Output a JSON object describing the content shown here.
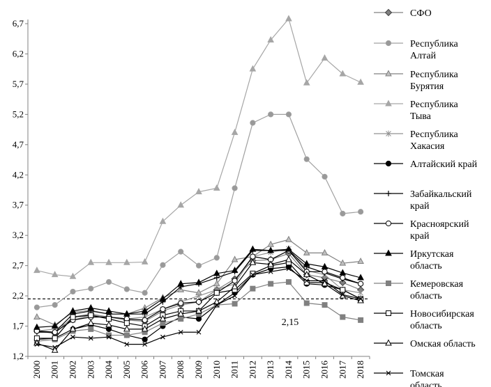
{
  "chart_data": {
    "type": "line",
    "x": [
      "2000",
      "2001",
      "2002",
      "2003",
      "2004",
      "2005",
      "2006",
      "2007",
      "2008",
      "2009",
      "2010",
      "2011",
      "2012",
      "2013",
      "2014",
      "2015",
      "2016",
      "2017",
      "2018"
    ],
    "ylim": [
      1.2,
      6.7
    ],
    "yticks": [
      "1,2",
      "1,7",
      "2,2",
      "2,7",
      "3,2",
      "3,7",
      "4,2",
      "4,7",
      "5,2",
      "5,7",
      "6,2",
      "6,7"
    ],
    "grid": false,
    "legend_position": "right",
    "reference_line": {
      "value": 2.15,
      "label": "2,15",
      "style": "dashed"
    },
    "series": [
      {
        "name": "СФО",
        "marker": "diamond",
        "color": "#808080",
        "markerFill": "#808080",
        "values": [
          1.62,
          1.58,
          1.85,
          1.9,
          1.85,
          1.8,
          1.78,
          1.95,
          2.05,
          2.1,
          2.3,
          2.48,
          2.78,
          2.8,
          2.9,
          2.55,
          2.5,
          2.42,
          2.3
        ]
      },
      {
        "name": "Республика Алтай",
        "marker": "circle",
        "color": "#a0a0a0",
        "markerFill": "#999999",
        "values": [
          2.01,
          2.05,
          2.27,
          2.32,
          2.43,
          2.31,
          2.25,
          2.71,
          2.93,
          2.7,
          2.83,
          3.98,
          5.06,
          5.2,
          5.2,
          4.46,
          4.17,
          3.56,
          3.59
        ]
      },
      {
        "name": "Республика Бурятия",
        "marker": "triangle",
        "color": "#808080",
        "markerFill": "#bfbfbf",
        "values": [
          1.85,
          1.72,
          1.93,
          1.96,
          1.9,
          1.9,
          2.0,
          2.17,
          2.3,
          2.25,
          2.4,
          2.8,
          2.85,
          3.05,
          3.13,
          2.91,
          2.91,
          2.74,
          2.77
        ]
      },
      {
        "name": "Республика Тыва",
        "marker": "triangle",
        "color": "#a6a6a6",
        "markerFill": "#a6a6a6",
        "values": [
          2.62,
          2.55,
          2.52,
          2.75,
          2.75,
          2.75,
          2.76,
          3.43,
          3.7,
          3.92,
          3.98,
          4.9,
          5.95,
          6.43,
          6.78,
          5.72,
          6.13,
          5.87,
          5.73
        ]
      },
      {
        "name": "Республика Хакасия",
        "marker": "star",
        "color": "#909090",
        "markerFill": "#909090",
        "values": [
          1.62,
          1.65,
          1.8,
          1.88,
          1.85,
          1.82,
          1.85,
          1.98,
          2.1,
          2.2,
          2.3,
          2.4,
          2.85,
          2.92,
          2.98,
          2.62,
          2.55,
          2.3,
          2.25
        ]
      },
      {
        "name": "Алтайский край",
        "marker": "circle",
        "color": "#000000",
        "markerFill": "#000000",
        "values": [
          1.48,
          1.5,
          1.65,
          1.72,
          1.65,
          1.55,
          1.48,
          1.7,
          1.85,
          1.82,
          2.05,
          2.25,
          2.55,
          2.65,
          2.68,
          2.4,
          2.38,
          2.3,
          2.15
        ]
      },
      {
        "name": "Забайкальский край",
        "marker": "plus",
        "color": "#000000",
        "markerFill": "#000000",
        "values": [
          1.6,
          1.6,
          1.9,
          1.95,
          1.9,
          1.9,
          1.9,
          2.1,
          2.35,
          2.4,
          2.5,
          2.6,
          2.95,
          2.95,
          2.95,
          2.68,
          2.58,
          2.48,
          2.4
        ]
      },
      {
        "name": "Красноярский край",
        "marker": "circle",
        "color": "#000000",
        "markerFill": "#ffffff",
        "values": [
          1.62,
          1.6,
          1.8,
          1.85,
          1.85,
          1.82,
          1.8,
          1.98,
          2.08,
          2.1,
          2.25,
          2.45,
          2.85,
          2.8,
          2.95,
          2.6,
          2.6,
          2.5,
          2.4
        ]
      },
      {
        "name": "Иркутская область",
        "marker": "triangle",
        "color": "#000000",
        "markerFill": "#000000",
        "values": [
          1.68,
          1.7,
          1.95,
          2.0,
          1.95,
          1.9,
          1.95,
          2.15,
          2.4,
          2.42,
          2.57,
          2.62,
          2.97,
          2.95,
          2.97,
          2.73,
          2.68,
          2.58,
          2.5
        ]
      },
      {
        "name": "Кемеровская область",
        "marker": "square",
        "color": "#808080",
        "markerFill": "#808080",
        "values": [
          1.45,
          1.48,
          1.62,
          1.65,
          1.55,
          1.55,
          1.6,
          1.75,
          1.82,
          1.9,
          2.05,
          2.07,
          2.32,
          2.4,
          2.43,
          2.08,
          2.05,
          1.85,
          1.8
        ]
      },
      {
        "name": "Новосибирская область",
        "marker": "square",
        "color": "#000000",
        "markerFill": "#ffffff",
        "values": [
          1.5,
          1.5,
          1.85,
          1.88,
          1.82,
          1.75,
          1.7,
          1.88,
          1.95,
          1.95,
          2.25,
          2.3,
          2.57,
          2.7,
          2.75,
          2.42,
          2.42,
          2.3,
          2.15
        ]
      },
      {
        "name": "Омская область",
        "marker": "triangle",
        "color": "#000000",
        "markerFill": "#ffffff",
        "values": [
          1.42,
          1.3,
          1.65,
          1.75,
          1.72,
          1.65,
          1.65,
          1.82,
          1.9,
          1.95,
          2.1,
          2.35,
          2.75,
          2.72,
          2.8,
          2.55,
          2.4,
          2.2,
          2.12
        ]
      },
      {
        "name": "Томская область",
        "marker": "x",
        "color": "#000000",
        "markerFill": "#000000",
        "values": [
          1.4,
          1.35,
          1.52,
          1.5,
          1.52,
          1.4,
          1.4,
          1.52,
          1.6,
          1.6,
          2.05,
          2.2,
          2.55,
          2.6,
          2.65,
          2.45,
          2.45,
          2.22,
          2.15
        ]
      }
    ]
  },
  "legend": {
    "items": [
      {
        "lines": [
          "СФО"
        ]
      },
      {
        "lines": [
          "Республика",
          "Алтай"
        ]
      },
      {
        "lines": [
          "Республика",
          "Бурятия"
        ]
      },
      {
        "lines": [
          "Республика",
          "Тыва"
        ]
      },
      {
        "lines": [
          "Республика",
          "Хакасия"
        ]
      },
      {
        "lines": [
          "Алтайский край"
        ]
      },
      {
        "lines": [
          "Забайкальский",
          "край"
        ]
      },
      {
        "lines": [
          "Красноярский",
          "край"
        ]
      },
      {
        "lines": [
          "Иркутская",
          "область"
        ]
      },
      {
        "lines": [
          "Кемеровская",
          "область"
        ]
      },
      {
        "lines": [
          "Новосибирская",
          "область"
        ]
      },
      {
        "lines": [
          "Омская область"
        ]
      },
      {
        "lines": [
          "Томская",
          "область"
        ]
      }
    ]
  }
}
